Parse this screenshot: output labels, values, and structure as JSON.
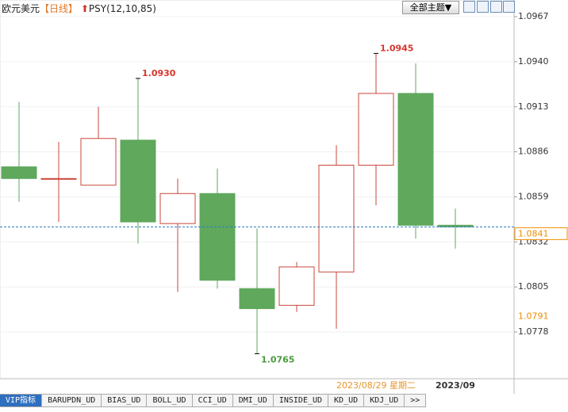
{
  "header": {
    "title": "欧元美元",
    "period": "【日线】",
    "indicator": "PSY(12,10,85)",
    "theme_button": "全部主题▼"
  },
  "chart_data": {
    "type": "candlestick",
    "categories": [
      null,
      null,
      null,
      null,
      null,
      null,
      null,
      null,
      null,
      "2023/08/29 星期二",
      null,
      "2023/09"
    ],
    "category_label_colors": [
      null,
      null,
      null,
      null,
      null,
      null,
      null,
      null,
      null,
      "#e8962a",
      null,
      "#333333"
    ],
    "open": [
      1.0877,
      1.087,
      1.0866,
      1.0893,
      1.0843,
      1.0861,
      1.0804,
      1.0794,
      1.0814,
      1.0878,
      1.0921,
      1.0842
    ],
    "high": [
      1.0916,
      1.0892,
      1.0913,
      1.093,
      1.087,
      1.0876,
      1.084,
      1.082,
      1.089,
      1.0945,
      1.0939,
      1.0852
    ],
    "low": [
      1.0856,
      1.0844,
      1.0866,
      1.0831,
      1.0802,
      1.0804,
      1.0765,
      1.079,
      1.078,
      1.0854,
      1.0834,
      1.0828
    ],
    "close": [
      1.087,
      1.087,
      1.0894,
      1.0844,
      1.0861,
      1.0809,
      1.0792,
      1.0817,
      1.0878,
      1.0921,
      1.0842,
      1.0841
    ],
    "high_labels": [
      null,
      null,
      null,
      "1.0930",
      null,
      null,
      null,
      null,
      null,
      "1.0945",
      null,
      null
    ],
    "low_labels": [
      null,
      null,
      null,
      null,
      null,
      null,
      "1.0765",
      null,
      null,
      null,
      null,
      null
    ],
    "up_color": "#c8473b",
    "down_color": "#5fa85c",
    "high_label_color": "#d9342b",
    "low_label_color": "#4a9a3d",
    "ylim": [
      1.075,
      1.0977
    ],
    "yticks": [
      1.0967,
      {
        "value": 1.094,
        "label": "1.0940"
      },
      1.0913,
      1.0886,
      1.0859,
      1.0832,
      1.0805,
      1.0778
    ],
    "current_price": {
      "value": 1.0841,
      "color": "#f08c00"
    },
    "crosshair": {
      "value": 1.0791,
      "color": "#f08c00"
    }
  },
  "tabs": [
    "VIP指标",
    "BARUPDN_UD",
    "BIAS_UD",
    "BOLL_UD",
    "CCI_UD",
    "DMI_UD",
    "INSIDE_UD",
    "KD_UD",
    "KDJ_UD",
    ">>"
  ]
}
